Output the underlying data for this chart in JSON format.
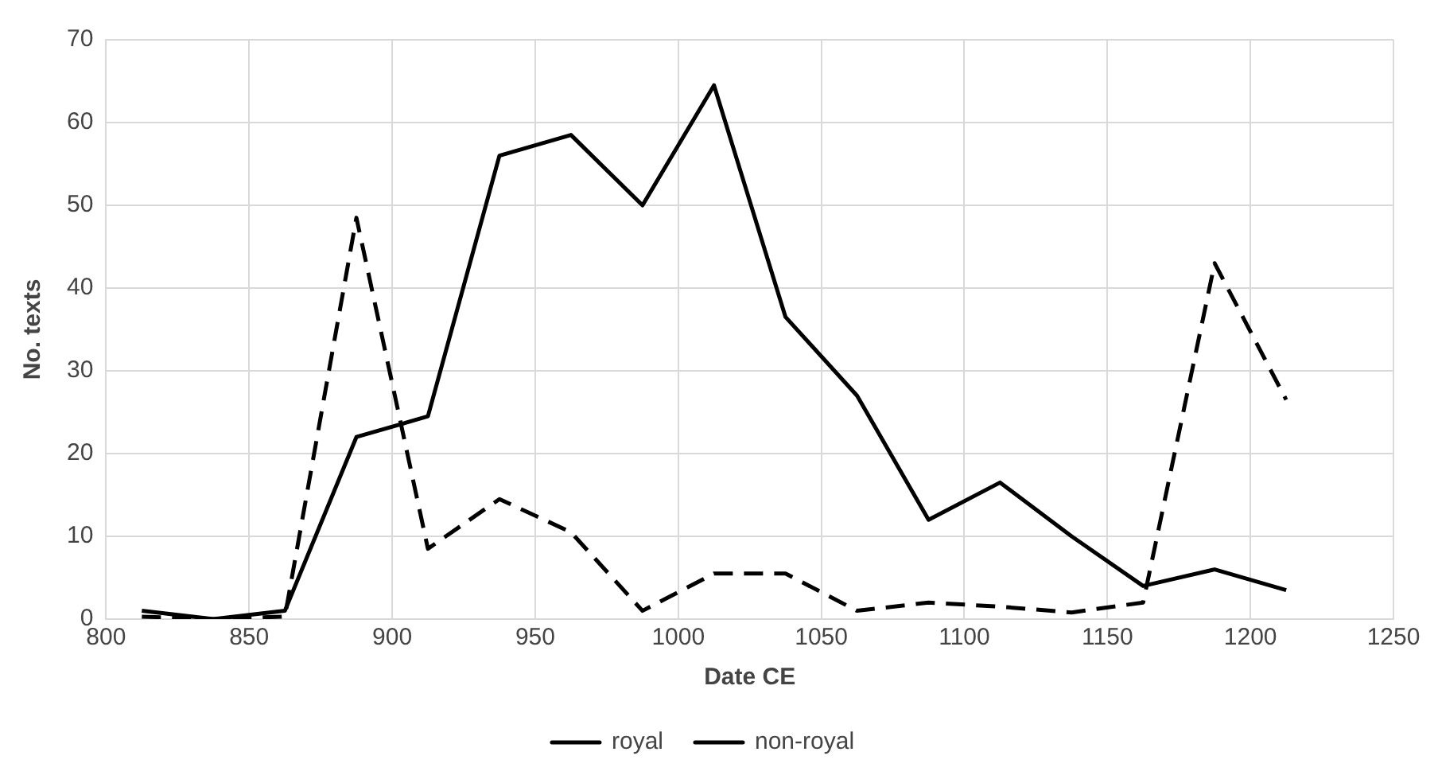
{
  "chart_data": {
    "type": "line",
    "xlabel": "Date CE",
    "ylabel": "No. texts",
    "x": [
      812.5,
      837.5,
      862.5,
      887.5,
      912.5,
      937.5,
      962.5,
      987.5,
      1012.5,
      1037.5,
      1062.5,
      1087.5,
      1112.5,
      1137.5,
      1162.5,
      1187.5,
      1212.5
    ],
    "series": [
      {
        "name": "royal",
        "color": "#000000",
        "line_style": "dashed",
        "values": [
          0.3,
          0,
          0.3,
          48.5,
          8.5,
          14.5,
          10.5,
          1,
          5.5,
          5.5,
          1,
          2,
          1.5,
          0.8,
          2,
          43,
          26.5
        ]
      },
      {
        "name": "non-royal",
        "color": "#000000",
        "line_style": "solid",
        "values": [
          1,
          0,
          1,
          22,
          24.5,
          56,
          58.5,
          50,
          64.5,
          36.5,
          27,
          12,
          16.5,
          10,
          4,
          6,
          3.5
        ]
      }
    ],
    "xlim": [
      800,
      1250
    ],
    "xticks": [
      800,
      850,
      900,
      950,
      1000,
      1050,
      1100,
      1150,
      1200,
      1250
    ],
    "ylim": [
      0,
      70
    ],
    "yticks": [
      0,
      10,
      20,
      30,
      40,
      50,
      60,
      70
    ],
    "grid": true,
    "legend": "bottom",
    "marker": "none"
  }
}
